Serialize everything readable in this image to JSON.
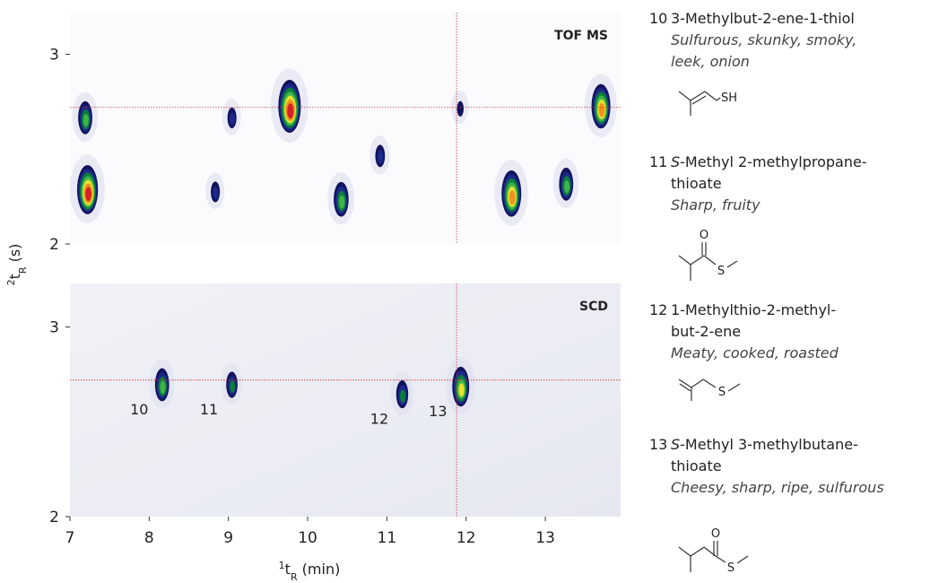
{
  "chart_data": [
    {
      "type": "peaks",
      "panel_label": "TOF MS",
      "x": [
        7.19,
        7.22,
        8.83,
        9.04,
        9.77,
        10.42,
        10.91,
        11.92,
        12.57,
        13.26,
        13.7
      ],
      "y": [
        2.67,
        2.29,
        2.28,
        2.67,
        2.73,
        2.24,
        2.47,
        2.72,
        2.27,
        2.32,
        2.73
      ],
      "intensity": [
        0.55,
        0.9,
        0.3,
        0.3,
        1.0,
        0.6,
        0.35,
        0.25,
        0.85,
        0.55,
        0.8
      ],
      "xlim": [
        7,
        13.95
      ],
      "ylim": [
        2,
        3.22
      ],
      "yticks": [
        2,
        3
      ],
      "crosshair": {
        "x": 11.88,
        "y": 2.72
      },
      "ylabel": {
        "sup": "2",
        "text": "t",
        "sub": "R",
        "unit": " (s)"
      }
    },
    {
      "type": "peaks",
      "panel_label": "SCD",
      "x": [
        8.16,
        9.04,
        11.19,
        11.93
      ],
      "y": [
        2.7,
        2.7,
        2.65,
        2.69
      ],
      "intensity": [
        0.55,
        0.4,
        0.45,
        0.7
      ],
      "peak_labels": [
        "10",
        "11",
        "12",
        "13"
      ],
      "xlim": [
        7,
        13.95
      ],
      "ylim": [
        2,
        3.23
      ],
      "yticks": [
        2,
        3
      ],
      "xticks": [
        7,
        8,
        9,
        10,
        11,
        12,
        13
      ],
      "crosshair": {
        "x": 11.88,
        "y": 2.72
      },
      "xlabel": {
        "sup": "1",
        "text": "t",
        "sub": "R",
        "unit": " (min)"
      }
    }
  ],
  "compounds": [
    {
      "number": "10",
      "name": [
        "3-Methylbut-2-ene-1-thiol"
      ],
      "odor": [
        "Sulfurous, skunky, smoky,",
        "leek, onion"
      ],
      "atoms": [
        "SH"
      ]
    },
    {
      "number": "11",
      "name_italic": "S",
      "name": [
        "-Methyl 2-methylpropane-",
        "thioate"
      ],
      "odor": [
        "Sharp, fruity"
      ],
      "atoms": [
        "O",
        "S"
      ]
    },
    {
      "number": "12",
      "name": [
        "1-Methylthio-2-methyl-",
        "but-2-ene"
      ],
      "odor": [
        "Meaty, cooked, roasted"
      ],
      "atoms": [
        "S"
      ]
    },
    {
      "number": "13",
      "name_italic": "S",
      "name": [
        "-Methyl 3-methylbutane-",
        "thioate"
      ],
      "odor": [
        "Cheesy, sharp, ripe, sulfurous"
      ],
      "atoms": [
        "O",
        "S"
      ]
    }
  ]
}
